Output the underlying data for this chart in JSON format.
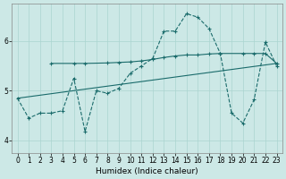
{
  "xlabel": "Humidex (Indice chaleur)",
  "bg_color": "#cce8e6",
  "line_color": "#1a6b6b",
  "grid_color": "#aad4d0",
  "xlim": [
    -0.5,
    23.5
  ],
  "ylim": [
    3.75,
    6.75
  ],
  "yticks": [
    4,
    5,
    6
  ],
  "xticks": [
    0,
    1,
    2,
    3,
    4,
    5,
    6,
    7,
    8,
    9,
    10,
    11,
    12,
    13,
    14,
    15,
    16,
    17,
    18,
    19,
    20,
    21,
    22,
    23
  ],
  "line1_x": [
    0,
    1,
    2,
    3,
    4,
    5,
    6,
    7,
    8,
    9,
    10,
    11,
    12,
    13,
    14,
    15,
    16,
    17,
    18,
    19,
    20,
    21,
    22,
    23
  ],
  "line1_y": [
    4.85,
    4.45,
    4.55,
    4.55,
    4.6,
    5.25,
    4.18,
    5.0,
    4.95,
    5.05,
    5.35,
    5.5,
    5.65,
    6.2,
    6.2,
    6.55,
    6.48,
    6.25,
    5.75,
    4.55,
    4.35,
    4.82,
    5.98,
    5.5
  ],
  "line2_x": [
    3,
    5,
    6,
    8,
    9,
    10,
    11,
    12,
    13,
    14,
    15,
    16,
    17,
    18,
    20,
    21,
    22,
    23
  ],
  "line2_y": [
    5.55,
    5.55,
    5.55,
    5.56,
    5.57,
    5.58,
    5.6,
    5.63,
    5.67,
    5.7,
    5.72,
    5.72,
    5.74,
    5.75,
    5.75,
    5.75,
    5.75,
    5.55
  ],
  "line3_x": [
    0,
    23
  ],
  "line3_y": [
    4.85,
    5.55
  ]
}
